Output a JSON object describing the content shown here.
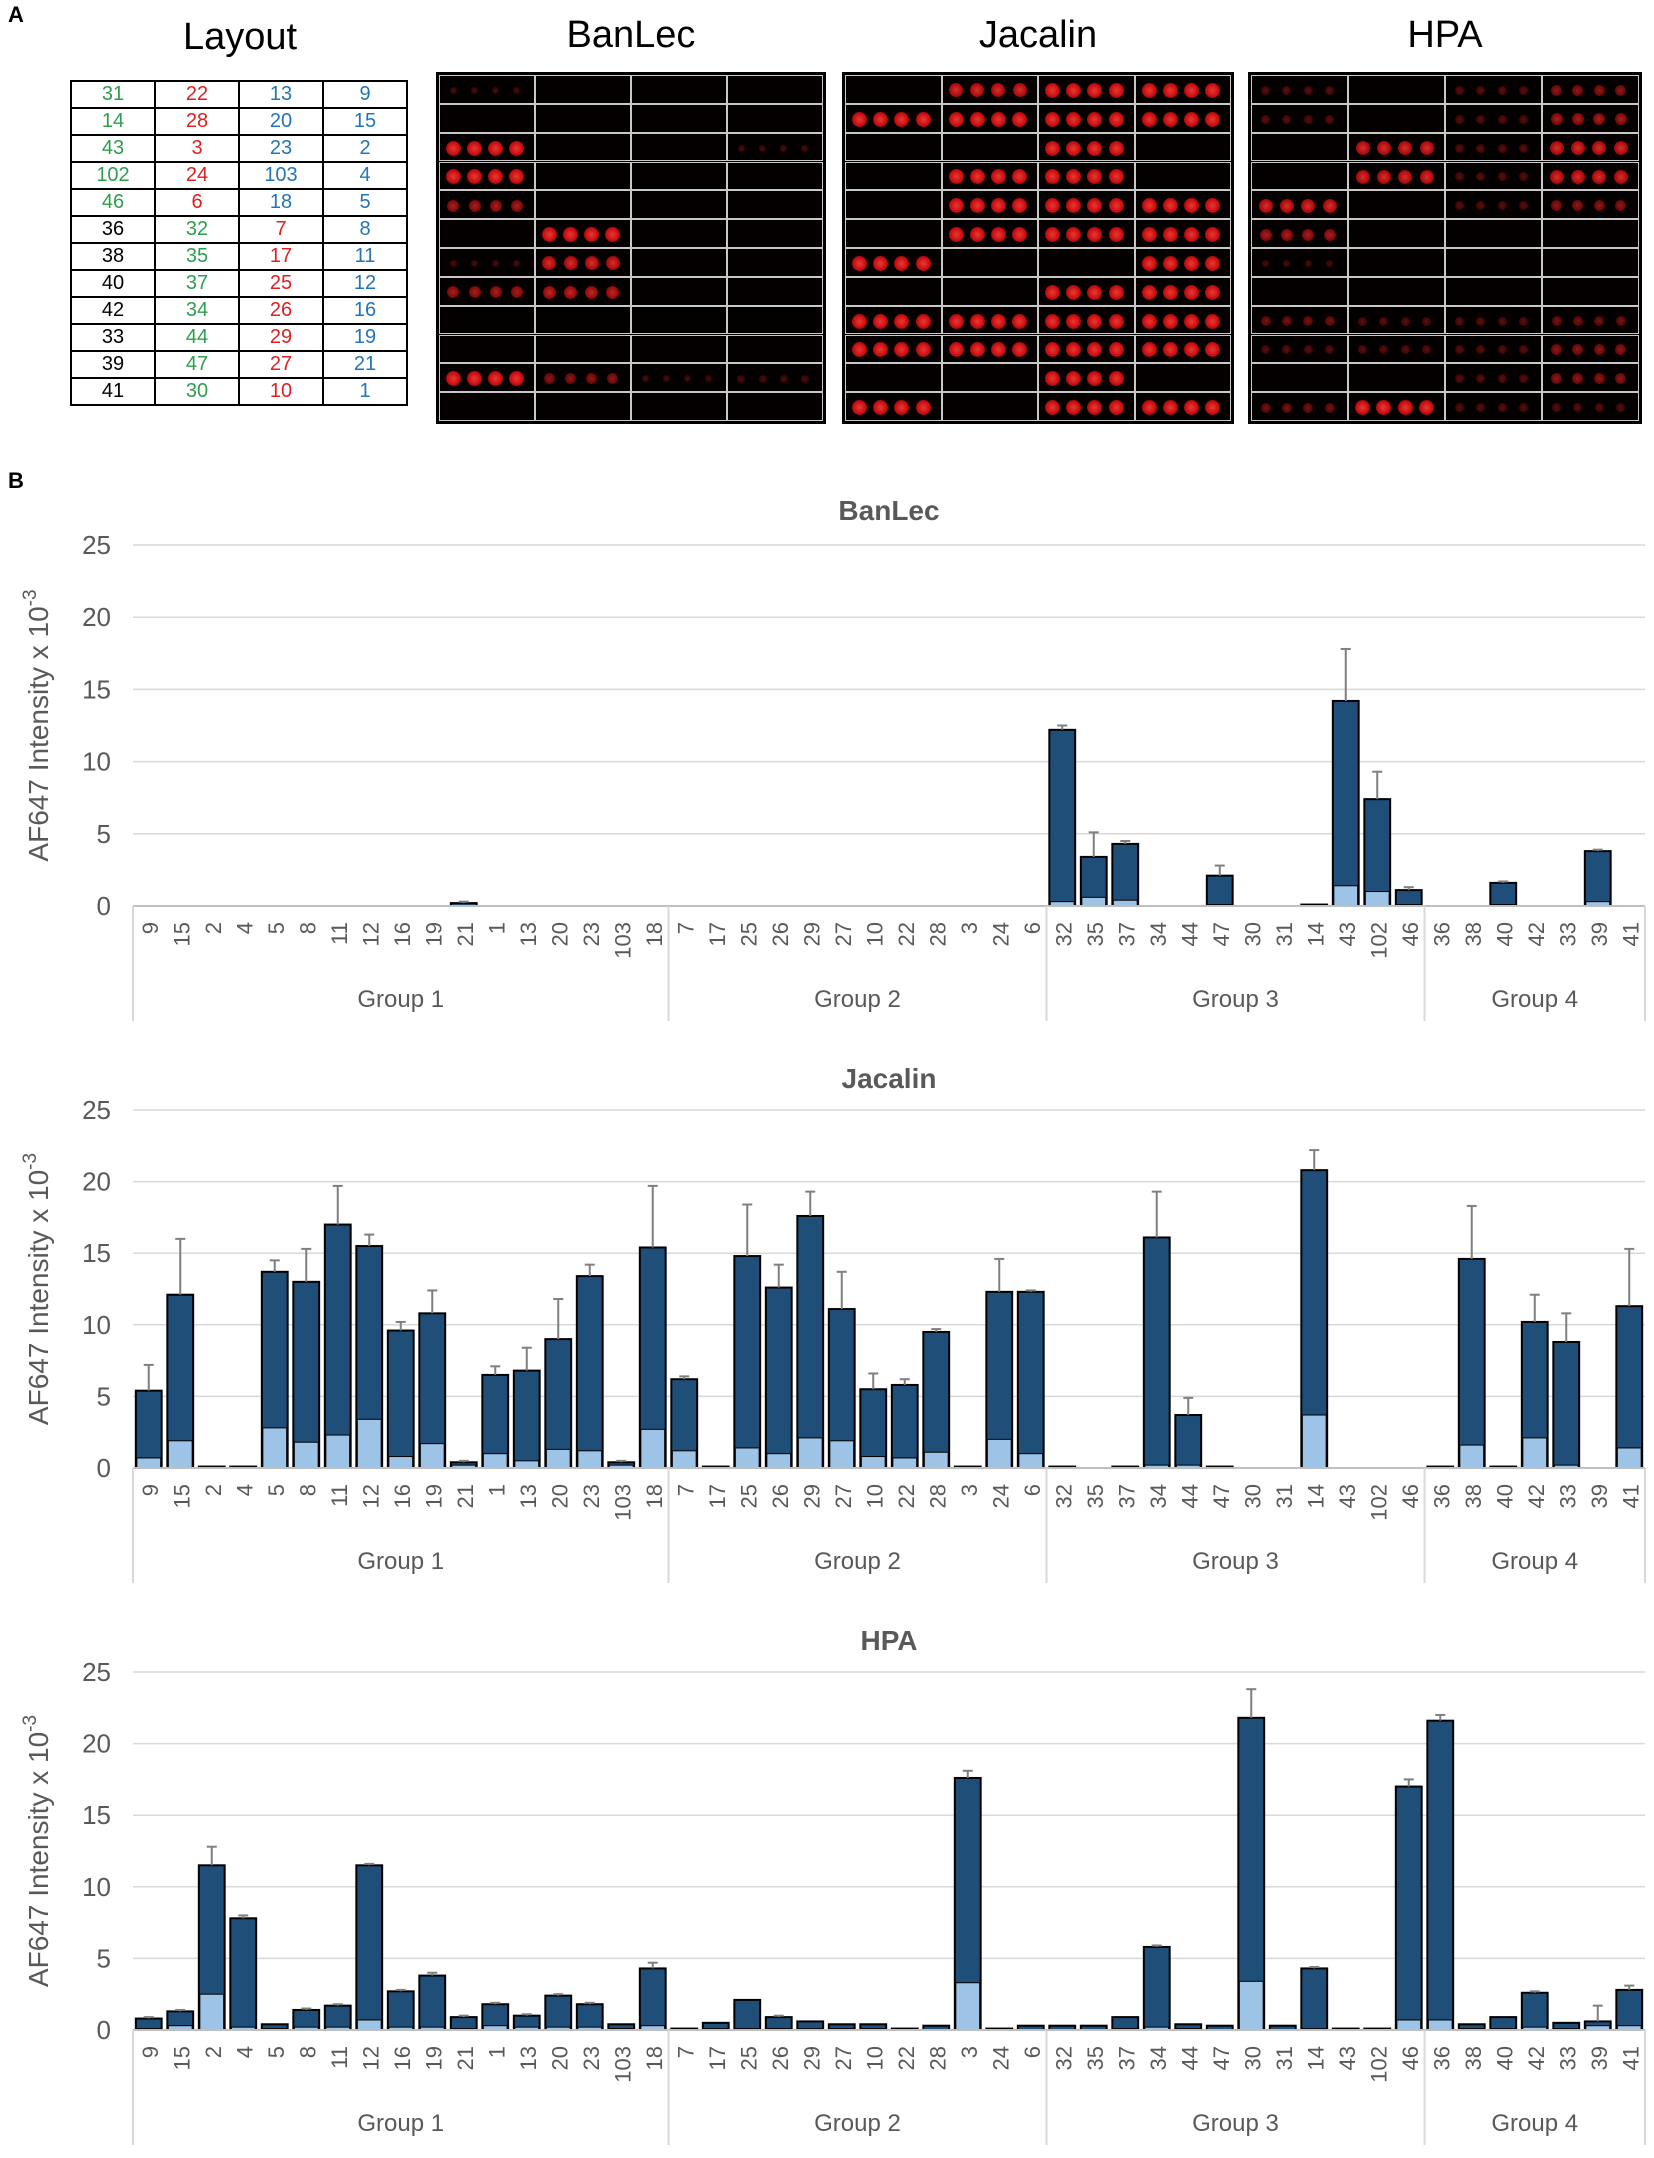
{
  "panel_a": {
    "letter": "A",
    "titles": {
      "layout": "Layout",
      "banlec": "BanLec",
      "jacalin": "Jacalin",
      "hpa": "HPA"
    },
    "layout_rows": [
      [
        [
          "31",
          "green"
        ],
        [
          "22",
          "red"
        ],
        [
          "13",
          "blue"
        ],
        [
          "9",
          "blue"
        ]
      ],
      [
        [
          "14",
          "green"
        ],
        [
          "28",
          "red"
        ],
        [
          "20",
          "blue"
        ],
        [
          "15",
          "blue"
        ]
      ],
      [
        [
          "43",
          "green"
        ],
        [
          "3",
          "red"
        ],
        [
          "23",
          "blue"
        ],
        [
          "2",
          "blue"
        ]
      ],
      [
        [
          "102",
          "green"
        ],
        [
          "24",
          "red"
        ],
        [
          "103",
          "blue"
        ],
        [
          "4",
          "blue"
        ]
      ],
      [
        [
          "46",
          "green"
        ],
        [
          "6",
          "red"
        ],
        [
          "18",
          "blue"
        ],
        [
          "5",
          "blue"
        ]
      ],
      [
        [
          "36",
          "black"
        ],
        [
          "32",
          "green"
        ],
        [
          "7",
          "red"
        ],
        [
          "8",
          "blue"
        ]
      ],
      [
        [
          "38",
          "black"
        ],
        [
          "35",
          "green"
        ],
        [
          "17",
          "red"
        ],
        [
          "11",
          "blue"
        ]
      ],
      [
        [
          "40",
          "black"
        ],
        [
          "37",
          "green"
        ],
        [
          "25",
          "red"
        ],
        [
          "12",
          "blue"
        ]
      ],
      [
        [
          "42",
          "black"
        ],
        [
          "34",
          "green"
        ],
        [
          "26",
          "red"
        ],
        [
          "16",
          "blue"
        ]
      ],
      [
        [
          "33",
          "black"
        ],
        [
          "44",
          "green"
        ],
        [
          "29",
          "red"
        ],
        [
          "19",
          "blue"
        ]
      ],
      [
        [
          "39",
          "black"
        ],
        [
          "47",
          "green"
        ],
        [
          "27",
          "red"
        ],
        [
          "21",
          "blue"
        ]
      ],
      [
        [
          "41",
          "black"
        ],
        [
          "30",
          "green"
        ],
        [
          "10",
          "red"
        ],
        [
          "1",
          "blue"
        ]
      ]
    ],
    "colors": {
      "green": "#2e9e4f",
      "red": "#e02020",
      "blue": "#2474b8",
      "black": "#000000"
    }
  },
  "panel_b": {
    "letter": "B"
  },
  "chart_data": [
    {
      "type": "bar",
      "title": "BanLec",
      "ylabel": "AF647 Intensity x 10-3",
      "ylim": [
        0,
        25
      ],
      "yticks": [
        0,
        5,
        10,
        15,
        20,
        25
      ],
      "grid": true,
      "categories": [
        "9",
        "15",
        "2",
        "4",
        "5",
        "8",
        "11",
        "12",
        "16",
        "19",
        "21",
        "1",
        "13",
        "20",
        "23",
        "103",
        "18",
        "7",
        "17",
        "25",
        "26",
        "29",
        "27",
        "10",
        "22",
        "28",
        "3",
        "24",
        "6",
        "32",
        "35",
        "37",
        "34",
        "44",
        "47",
        "30",
        "31",
        "14",
        "43",
        "102",
        "46",
        "36",
        "38",
        "40",
        "42",
        "33",
        "39",
        "41"
      ],
      "groups": [
        {
          "name": "Group 1",
          "count": 17
        },
        {
          "name": "Group 2",
          "count": 12
        },
        {
          "name": "Group 3",
          "count": 12
        },
        {
          "name": "Group 4",
          "count": 7
        }
      ],
      "series": [
        {
          "name": "total",
          "color": "#1f4e79",
          "values": [
            0,
            0,
            0,
            0,
            0,
            0,
            0,
            0,
            0,
            0,
            0.2,
            0,
            0,
            0,
            0,
            0,
            0,
            0,
            0,
            0,
            0,
            0,
            0,
            0,
            0,
            0,
            0,
            0,
            0,
            12.2,
            3.4,
            4.3,
            0,
            0,
            2.1,
            0,
            0,
            0.1,
            14.2,
            7.4,
            1.1,
            0,
            0,
            1.6,
            0,
            0,
            3.8,
            0
          ]
        },
        {
          "name": "inner",
          "color": "#9dc3e6",
          "values": [
            0,
            0,
            0,
            0,
            0,
            0,
            0,
            0,
            0,
            0,
            0,
            0,
            0,
            0,
            0,
            0,
            0,
            0,
            0,
            0,
            0,
            0,
            0,
            0,
            0,
            0,
            0,
            0,
            0,
            0.3,
            0.6,
            0.4,
            0,
            0,
            0.1,
            0,
            0,
            0,
            1.4,
            1.0,
            0.1,
            0,
            0,
            0.1,
            0,
            0,
            0.3,
            0
          ]
        }
      ],
      "errors": [
        0,
        0,
        0,
        0,
        0,
        0,
        0,
        0,
        0,
        0,
        0.1,
        0,
        0,
        0,
        0,
        0,
        0,
        0,
        0,
        0,
        0,
        0,
        0,
        0,
        0,
        0,
        0,
        0,
        0,
        0.3,
        1.7,
        0.2,
        0,
        0,
        0.7,
        0,
        0,
        0,
        3.6,
        1.9,
        0.2,
        0,
        0,
        0.1,
        0,
        0,
        0.1,
        0
      ]
    },
    {
      "type": "bar",
      "title": "Jacalin",
      "ylabel": "AF647 Intensity x 10-3",
      "ylim": [
        0,
        25
      ],
      "yticks": [
        0,
        5,
        10,
        15,
        20,
        25
      ],
      "grid": true,
      "categories": [
        "9",
        "15",
        "2",
        "4",
        "5",
        "8",
        "11",
        "12",
        "16",
        "19",
        "21",
        "1",
        "13",
        "20",
        "23",
        "103",
        "18",
        "7",
        "17",
        "25",
        "26",
        "29",
        "27",
        "10",
        "22",
        "28",
        "3",
        "24",
        "6",
        "32",
        "35",
        "37",
        "34",
        "44",
        "47",
        "30",
        "31",
        "14",
        "43",
        "102",
        "46",
        "36",
        "38",
        "40",
        "42",
        "33",
        "39",
        "41"
      ],
      "groups": [
        {
          "name": "Group 1",
          "count": 17
        },
        {
          "name": "Group 2",
          "count": 12
        },
        {
          "name": "Group 3",
          "count": 12
        },
        {
          "name": "Group 4",
          "count": 7
        }
      ],
      "series": [
        {
          "name": "total",
          "color": "#1f4e79",
          "values": [
            5.4,
            12.1,
            0.1,
            0.1,
            13.7,
            13.0,
            17.0,
            15.5,
            9.6,
            10.8,
            0.4,
            6.5,
            6.8,
            9.0,
            13.4,
            0.4,
            15.4,
            6.2,
            0.1,
            14.8,
            12.6,
            17.6,
            11.1,
            5.5,
            5.8,
            9.5,
            0.1,
            12.3,
            12.3,
            0.1,
            0,
            0.1,
            16.1,
            3.7,
            0.1,
            0,
            0,
            20.8,
            0,
            0,
            0,
            0.1,
            14.6,
            0.1,
            10.2,
            8.8,
            0,
            11.3
          ]
        },
        {
          "name": "inner",
          "color": "#9dc3e6",
          "values": [
            0.7,
            1.9,
            0,
            0,
            2.8,
            1.8,
            2.3,
            3.4,
            0.8,
            1.7,
            0.2,
            1.0,
            0.5,
            1.3,
            1.2,
            0.2,
            2.7,
            1.2,
            0,
            1.4,
            1.0,
            2.1,
            1.9,
            0.8,
            0.7,
            1.1,
            0,
            2.0,
            1.0,
            0,
            0,
            0,
            0.2,
            0.2,
            0,
            0,
            0,
            3.7,
            0,
            0,
            0,
            0,
            1.6,
            0,
            2.1,
            0.2,
            0,
            1.4
          ]
        }
      ],
      "errors": [
        1.8,
        3.9,
        0,
        0,
        0.8,
        2.3,
        2.7,
        0.8,
        0.6,
        1.6,
        0.1,
        0.6,
        1.6,
        2.8,
        0.8,
        0.1,
        4.3,
        0.2,
        0,
        3.6,
        1.6,
        1.7,
        2.6,
        1.1,
        0.4,
        0.2,
        0,
        2.3,
        0.1,
        0,
        0,
        0,
        3.2,
        1.2,
        0,
        0,
        0,
        1.4,
        0,
        0,
        0,
        0,
        3.7,
        0,
        1.9,
        2.0,
        0,
        4.0
      ]
    },
    {
      "type": "bar",
      "title": "HPA",
      "ylabel": "AF647 Intensity x 10-3",
      "ylim": [
        0,
        25
      ],
      "yticks": [
        0,
        5,
        10,
        15,
        20,
        25
      ],
      "grid": true,
      "categories": [
        "9",
        "15",
        "2",
        "4",
        "5",
        "8",
        "11",
        "12",
        "16",
        "19",
        "21",
        "1",
        "13",
        "20",
        "23",
        "103",
        "18",
        "7",
        "17",
        "25",
        "26",
        "29",
        "27",
        "10",
        "22",
        "28",
        "3",
        "24",
        "6",
        "32",
        "35",
        "37",
        "34",
        "44",
        "47",
        "30",
        "31",
        "14",
        "43",
        "102",
        "46",
        "36",
        "38",
        "40",
        "42",
        "33",
        "39",
        "41"
      ],
      "groups": [
        {
          "name": "Group 1",
          "count": 17
        },
        {
          "name": "Group 2",
          "count": 12
        },
        {
          "name": "Group 3",
          "count": 12
        },
        {
          "name": "Group 4",
          "count": 7
        }
      ],
      "series": [
        {
          "name": "total",
          "color": "#1f4e79",
          "values": [
            0.8,
            1.3,
            11.5,
            7.8,
            0.4,
            1.4,
            1.7,
            11.5,
            2.7,
            3.8,
            0.9,
            1.8,
            1.0,
            2.4,
            1.8,
            0.4,
            4.3,
            0.1,
            0.5,
            2.1,
            0.9,
            0.6,
            0.4,
            0.4,
            0.1,
            0.3,
            17.6,
            0.1,
            0.3,
            0.3,
            0.3,
            0.9,
            5.8,
            0.4,
            0.3,
            21.8,
            0.3,
            4.3,
            0.1,
            0.1,
            17.0,
            21.6,
            0.4,
            0.9,
            2.6,
            0.5,
            0.6,
            2.8
          ]
        },
        {
          "name": "inner",
          "color": "#9dc3e6",
          "values": [
            0.1,
            0.3,
            2.5,
            0.2,
            0.1,
            0.2,
            0.2,
            0.7,
            0.2,
            0.2,
            0.1,
            0.3,
            0.2,
            0.2,
            0.2,
            0.1,
            0.3,
            0,
            0.1,
            0.1,
            0.1,
            0.1,
            0.1,
            0.1,
            0,
            0,
            3.3,
            0,
            0,
            0,
            0,
            0.1,
            0.2,
            0.1,
            0,
            3.4,
            0,
            0.1,
            0,
            0,
            0.7,
            0.7,
            0.1,
            0.1,
            0.2,
            0.1,
            0.3,
            0.3
          ]
        }
      ],
      "errors": [
        0.1,
        0.1,
        1.3,
        0.2,
        0,
        0.1,
        0.1,
        0.1,
        0.1,
        0.2,
        0.1,
        0.1,
        0.1,
        0.1,
        0.1,
        0,
        0.4,
        0,
        0,
        0,
        0.1,
        0,
        0,
        0,
        0,
        0,
        0.5,
        0,
        0,
        0,
        0,
        0,
        0.1,
        0,
        0,
        2.0,
        0,
        0.1,
        0,
        0,
        0.5,
        0.4,
        0,
        0,
        0.1,
        0,
        1.1,
        0.3
      ]
    }
  ]
}
